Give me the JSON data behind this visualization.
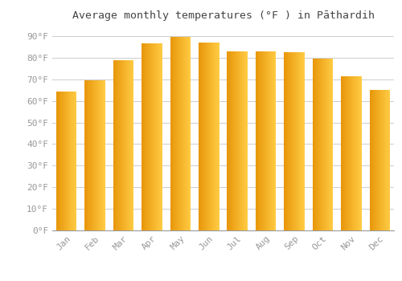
{
  "title": "Average monthly temperatures (°F ) in Pāthardih",
  "months": [
    "Jan",
    "Feb",
    "Mar",
    "Apr",
    "May",
    "Jun",
    "Jul",
    "Aug",
    "Sep",
    "Oct",
    "Nov",
    "Dec"
  ],
  "values": [
    64.5,
    69.5,
    79.0,
    86.5,
    89.5,
    87.0,
    83.0,
    83.0,
    82.5,
    79.5,
    71.5,
    65.0
  ],
  "bar_color_dark": "#E8960A",
  "bar_color_mid": "#FBAF18",
  "bar_color_light": "#FFCC44",
  "background_color": "#FFFFFF",
  "plot_bg_color": "#FFFFFF",
  "grid_color": "#CCCCCC",
  "tick_label_color": "#999999",
  "title_color": "#444444",
  "ylim": [
    0,
    95
  ],
  "yticks": [
    0,
    10,
    20,
    30,
    40,
    50,
    60,
    70,
    80,
    90
  ],
  "ytick_labels": [
    "0°F",
    "10°F",
    "20°F",
    "30°F",
    "40°F",
    "50°F",
    "60°F",
    "70°F",
    "80°F",
    "90°F"
  ],
  "title_fontsize": 9.5,
  "tick_fontsize": 8,
  "bar_width": 0.72,
  "gradient_steps": 50
}
